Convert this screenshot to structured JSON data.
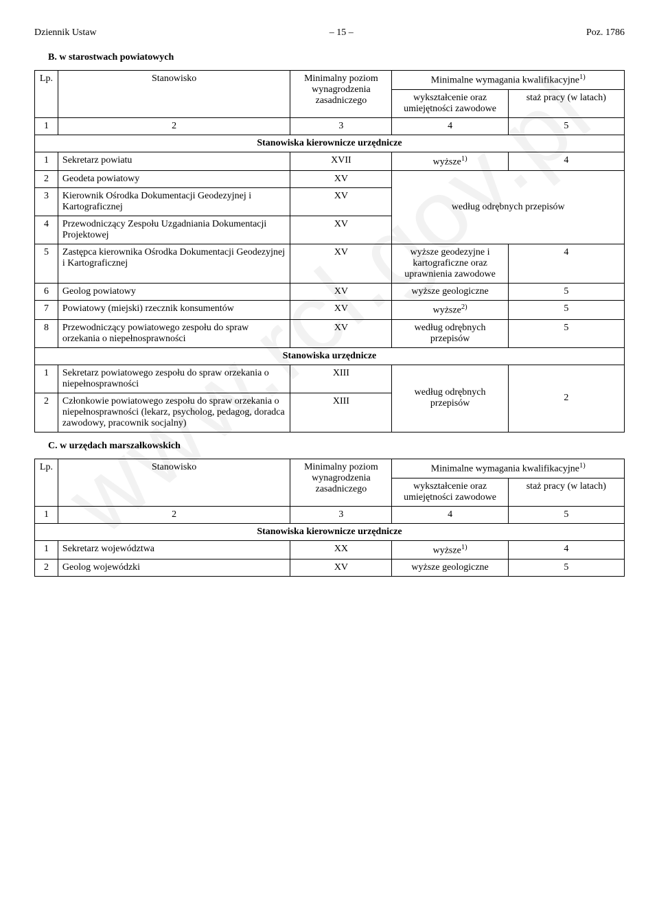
{
  "header": {
    "left": "Dziennik Ustaw",
    "center": "– 15 –",
    "right": "Poz. 1786"
  },
  "watermark": "www.rcl.gov.pl",
  "sectionB": {
    "title": "B. w starostwach powiatowych"
  },
  "sectionC": {
    "title": "C. w urzędach marszałkowskich"
  },
  "cols": {
    "lp": "Lp.",
    "stanowisko": "Stanowisko",
    "minimalny": "Minimalny poziom wynagrodzenia zasadniczego",
    "minimalne": "Minimalne wymagania kwalifikacyjne",
    "minimalne_sup": "1)",
    "wyksztalcenie": "wykształcenie oraz umiejętności zawodowe",
    "staz": "staż pracy (w latach)"
  },
  "numrow": {
    "c1": "1",
    "c2": "2",
    "c3": "3",
    "c4": "4",
    "c5": "5"
  },
  "sectHead": {
    "kier": "Stanowiska kierownicze urzędnicze",
    "urz": "Stanowiska urzędnicze"
  },
  "tblB": {
    "r1": {
      "lp": "1",
      "stan": "Sekretarz powiatu",
      "min": "XVII",
      "wyk": "wyższe",
      "wyk_sup": "1)",
      "staz": "4"
    },
    "r2": {
      "lp": "2",
      "stan": "Geodeta powiatowy",
      "min": "XV"
    },
    "r3": {
      "lp": "3",
      "stan": "Kierownik Ośrodka Dokumentacji Geodezyjnej i Kartograficznej",
      "min": "XV"
    },
    "r4": {
      "lp": "4",
      "stan": "Przewodniczący Zespołu Uzgadniania Dokumentacji Projektowej",
      "min": "XV"
    },
    "merged234": {
      "wyk": "według odrębnych przepisów"
    },
    "r5": {
      "lp": "5",
      "stan": "Zastępca kierownika Ośrodka Dokumentacji Geodezyjnej i Kartograficznej",
      "min": "XV",
      "wyk": "wyższe geodezyjne i kartograficzne oraz uprawnienia zawodowe",
      "staz": "4"
    },
    "r6": {
      "lp": "6",
      "stan": "Geolog powiatowy",
      "min": "XV",
      "wyk": "wyższe geologiczne",
      "staz": "5"
    },
    "r7": {
      "lp": "7",
      "stan": "Powiatowy (miejski) rzecznik konsumentów",
      "min": "XV",
      "wyk": "wyższe",
      "wyk_sup": "2)",
      "staz": "5"
    },
    "r8": {
      "lp": "8",
      "stan": "Przewodniczący powiatowego zespołu do spraw orzekania o niepełnosprawności",
      "min": "XV",
      "wyk": "według odrębnych przepisów",
      "staz": "5"
    },
    "u1": {
      "lp": "1",
      "stan": "Sekretarz powiatowego zespołu do spraw orzekania o niepełnosprawności",
      "min": "XIII"
    },
    "u2": {
      "lp": "2",
      "stan": "Członkowie powiatowego zespołu do spraw orzekania o niepełnosprawności (lekarz, psycholog, pedagog, doradca zawodowy, pracownik socjalny)",
      "min": "XIII"
    },
    "mergedU": {
      "wyk": "według odrębnych przepisów",
      "staz": "2"
    }
  },
  "tblC": {
    "r1": {
      "lp": "1",
      "stan": "Sekretarz województwa",
      "min": "XX",
      "wyk": "wyższe",
      "wyk_sup": "1)",
      "staz": "4"
    },
    "r2": {
      "lp": "2",
      "stan": "Geolog wojewódzki",
      "min": "XV",
      "wyk": "wyższe geologiczne",
      "staz": "5"
    }
  }
}
